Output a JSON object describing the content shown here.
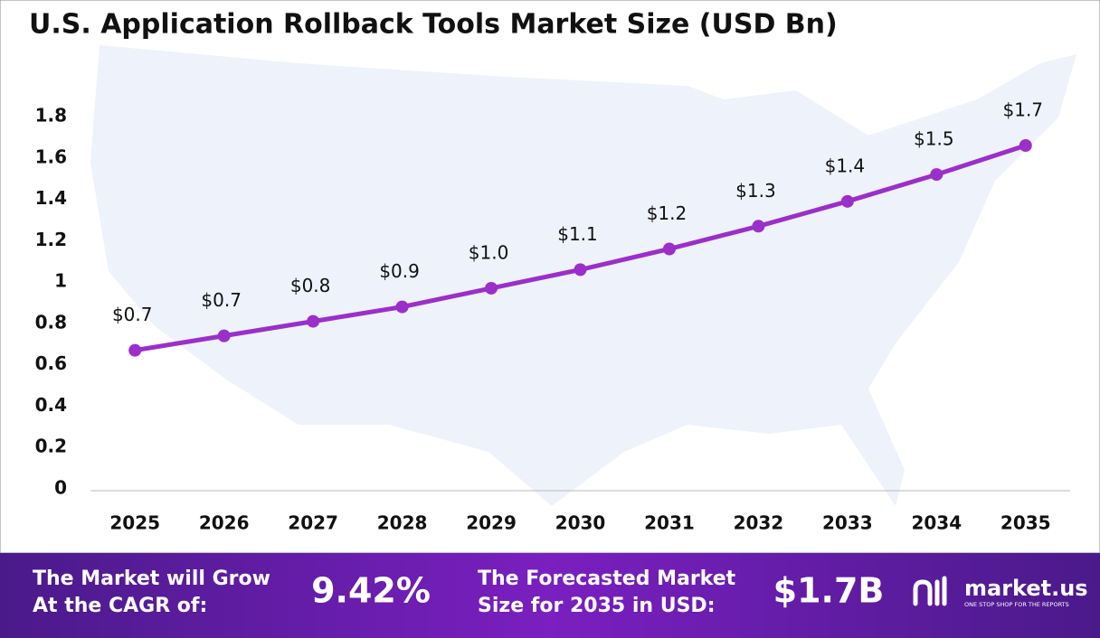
{
  "chart_data": {
    "type": "line",
    "title": "U.S. Application Rollback Tools Market Size (USD Bn)",
    "categories": [
      "2025",
      "2026",
      "2027",
      "2028",
      "2029",
      "2030",
      "2031",
      "2032",
      "2033",
      "2034",
      "2035"
    ],
    "values": [
      0.67,
      0.74,
      0.81,
      0.88,
      0.97,
      1.06,
      1.16,
      1.27,
      1.39,
      1.52,
      1.66
    ],
    "value_labels": [
      "$0.7",
      "$0.7",
      "$0.8",
      "$0.9",
      "$1.0",
      "$1.1",
      "$1.2",
      "$1.3",
      "$1.4",
      "$1.5",
      "$1.7"
    ],
    "color": "#9b2fc9",
    "ylim": [
      0,
      1.8
    ],
    "yticks": [
      0,
      0.2,
      0.4,
      0.6,
      0.8,
      1,
      1.2,
      1.4,
      1.6,
      1.8
    ],
    "grid": false
  },
  "footer": {
    "cagr_label": [
      "The Market will Grow",
      "At the CAGR of:"
    ],
    "cagr_value": "9.42%",
    "forecast_label": [
      "The Forecasted Market",
      "Size for 2035 in USD:"
    ],
    "forecast_value": "$1.7B",
    "brand": "market.us",
    "tagline": "ONE STOP SHOP FOR THE REPORTS"
  }
}
